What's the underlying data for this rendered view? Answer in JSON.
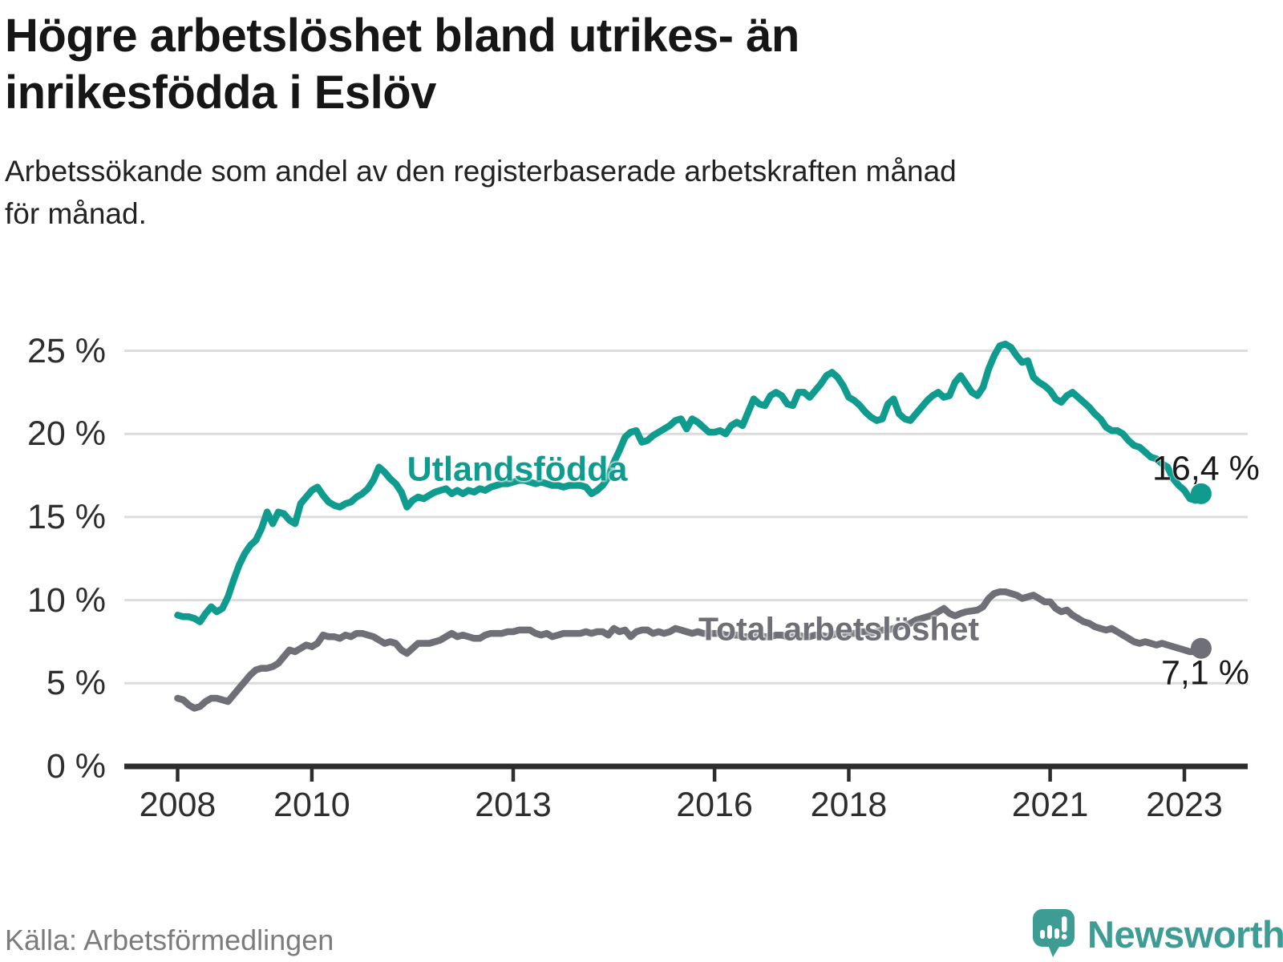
{
  "header": {
    "title": "Högre arbetslöshet bland utrikes- än inrikesfödda i Eslöv",
    "title_lines": [
      "Högre arbetslöshet bland utrikes- än",
      "inrikesfödda i Eslöv"
    ],
    "subtitle": "Arbetssökande som andel av den registerbaserade arbetskraften månad för månad.",
    "subtitle_lines": [
      "Arbetssökande som andel av den registerbaserade arbetskraften månad",
      "för månad."
    ]
  },
  "footer": {
    "source": "Källa: Arbetsförmedlingen",
    "brand": "Newsworthy",
    "brand_icon": "bar-chart-speech-bubble-icon"
  },
  "colors": {
    "foreign_born_line": "#0f9b8e",
    "total_line": "#6f6f78",
    "grid": "#dcdcdc",
    "axis": "#2d2d2d",
    "title_text": "#161616",
    "muted_text": "#7c7c7c",
    "brand_teal": "#3d9c93"
  },
  "chart_data": {
    "type": "line",
    "title": "Högre arbetslöshet bland utrikes- än inrikesfödda i Eslöv",
    "subtitle": "Arbetssökande som andel av den registerbaserade arbetskraften månad för månad.",
    "x_unit": "month",
    "x_start": "2008-01",
    "x_end": "2023-04",
    "points_per_year": 12,
    "ylim": [
      0,
      26.5
    ],
    "grid": "horizontal-only",
    "legend_position": "inline-labels",
    "y_axis": {
      "ticks": [
        {
          "value": 0,
          "label": "0 %"
        },
        {
          "value": 5,
          "label": "5 %"
        },
        {
          "value": 10,
          "label": "10 %"
        },
        {
          "value": 15,
          "label": "15 %"
        },
        {
          "value": 20,
          "label": "20 %"
        },
        {
          "value": 25,
          "label": "25 %"
        }
      ]
    },
    "x_axis": {
      "ticks": [
        {
          "year": 2008,
          "label": "2008"
        },
        {
          "year": 2010,
          "label": "2010"
        },
        {
          "year": 2013,
          "label": "2013"
        },
        {
          "year": 2016,
          "label": "2016"
        },
        {
          "year": 2018,
          "label": "2018"
        },
        {
          "year": 2021,
          "label": "2021"
        },
        {
          "year": 2023,
          "label": "2023"
        }
      ]
    },
    "series": [
      {
        "name": "Utlandsfödda",
        "label_text": "Utlandsfödda",
        "color": "#0f9b8e",
        "end_label": "16,4 %",
        "end_value": 16.4,
        "values": [
          9.1,
          9.0,
          9.0,
          8.9,
          8.7,
          9.2,
          9.6,
          9.3,
          9.5,
          10.2,
          11.2,
          12.1,
          12.8,
          13.3,
          13.6,
          14.3,
          15.3,
          14.6,
          15.3,
          15.2,
          14.8,
          14.6,
          15.8,
          16.2,
          16.6,
          16.8,
          16.3,
          15.9,
          15.7,
          15.6,
          15.8,
          15.9,
          16.2,
          16.4,
          16.7,
          17.2,
          18.0,
          17.7,
          17.3,
          17.0,
          16.5,
          15.6,
          16.0,
          16.2,
          16.1,
          16.3,
          16.5,
          16.6,
          16.7,
          16.4,
          16.6,
          16.4,
          16.6,
          16.5,
          16.7,
          16.6,
          16.8,
          16.9,
          17.0,
          17.0,
          17.1,
          17.2,
          17.2,
          17.1,
          17.0,
          17.1,
          17.0,
          16.9,
          16.9,
          16.8,
          16.9,
          16.9,
          16.9,
          16.8,
          16.4,
          16.6,
          16.9,
          17.4,
          18.3,
          19.0,
          19.8,
          20.1,
          20.2,
          19.5,
          19.6,
          19.9,
          20.1,
          20.3,
          20.5,
          20.8,
          20.9,
          20.3,
          20.9,
          20.7,
          20.4,
          20.1,
          20.1,
          20.2,
          20.0,
          20.5,
          20.7,
          20.5,
          21.3,
          22.1,
          21.8,
          21.7,
          22.3,
          22.5,
          22.3,
          21.8,
          21.7,
          22.5,
          22.5,
          22.2,
          22.6,
          23.0,
          23.5,
          23.7,
          23.4,
          22.9,
          22.2,
          22.0,
          21.7,
          21.3,
          21.0,
          20.8,
          20.9,
          21.8,
          22.1,
          21.2,
          20.9,
          20.8,
          21.2,
          21.6,
          22.0,
          22.3,
          22.5,
          22.2,
          22.3,
          23.1,
          23.5,
          23.0,
          22.5,
          22.3,
          22.8,
          23.9,
          24.7,
          25.3,
          25.4,
          25.2,
          24.7,
          24.3,
          24.4,
          23.4,
          23.1,
          22.9,
          22.6,
          22.1,
          21.9,
          22.3,
          22.5,
          22.2,
          21.9,
          21.6,
          21.2,
          20.9,
          20.4,
          20.2,
          20.2,
          20.0,
          19.6,
          19.3,
          19.2,
          18.9,
          18.6,
          18.5,
          18.2,
          18.0,
          17.3,
          16.9,
          16.6,
          16.1,
          16.0,
          16.4
        ]
      },
      {
        "name": "Total arbetslöshet",
        "label_text": "Total arbetslöshet",
        "color": "#6f6f78",
        "end_label": "7,1 %",
        "end_value": 7.1,
        "values": [
          4.1,
          4.0,
          3.7,
          3.5,
          3.6,
          3.9,
          4.1,
          4.1,
          4.0,
          3.9,
          4.3,
          4.7,
          5.1,
          5.5,
          5.8,
          5.9,
          5.9,
          6.0,
          6.2,
          6.6,
          7.0,
          6.9,
          7.1,
          7.3,
          7.2,
          7.4,
          7.9,
          7.8,
          7.8,
          7.7,
          7.9,
          7.8,
          8.0,
          8.0,
          7.9,
          7.8,
          7.6,
          7.4,
          7.5,
          7.4,
          7.0,
          6.8,
          7.1,
          7.4,
          7.4,
          7.4,
          7.5,
          7.6,
          7.8,
          8.0,
          7.8,
          7.9,
          7.8,
          7.7,
          7.7,
          7.9,
          8.0,
          8.0,
          8.0,
          8.1,
          8.1,
          8.2,
          8.2,
          8.2,
          8.0,
          7.9,
          8.0,
          7.8,
          7.9,
          8.0,
          8.0,
          8.0,
          8.0,
          8.1,
          8.0,
          8.1,
          8.1,
          7.9,
          8.3,
          8.1,
          8.2,
          7.8,
          8.1,
          8.2,
          8.2,
          8.0,
          8.1,
          8.0,
          8.1,
          8.3,
          8.2,
          8.1,
          8.0,
          8.1,
          8.0,
          8.0,
          8.0,
          8.0,
          7.9,
          7.9,
          7.9,
          7.8,
          7.8,
          7.9,
          7.9,
          7.8,
          7.8,
          7.9,
          7.9,
          7.8,
          7.8,
          7.9,
          7.8,
          7.8,
          7.9,
          7.9,
          7.8,
          7.9,
          8.0,
          8.0,
          8.0,
          8.0,
          8.1,
          8.1,
          8.0,
          8.1,
          8.2,
          8.2,
          8.3,
          8.4,
          8.5,
          8.6,
          8.8,
          8.9,
          9.0,
          9.1,
          9.3,
          9.5,
          9.2,
          9.05,
          9.2,
          9.3,
          9.35,
          9.4,
          9.6,
          10.1,
          10.4,
          10.5,
          10.5,
          10.4,
          10.3,
          10.1,
          10.2,
          10.3,
          10.1,
          9.9,
          9.9,
          9.5,
          9.3,
          9.4,
          9.1,
          8.9,
          8.7,
          8.6,
          8.4,
          8.3,
          8.2,
          8.3,
          8.1,
          7.9,
          7.7,
          7.5,
          7.4,
          7.5,
          7.4,
          7.3,
          7.4,
          7.3,
          7.2,
          7.1,
          7.0,
          6.9,
          6.9,
          7.1
        ]
      }
    ]
  }
}
